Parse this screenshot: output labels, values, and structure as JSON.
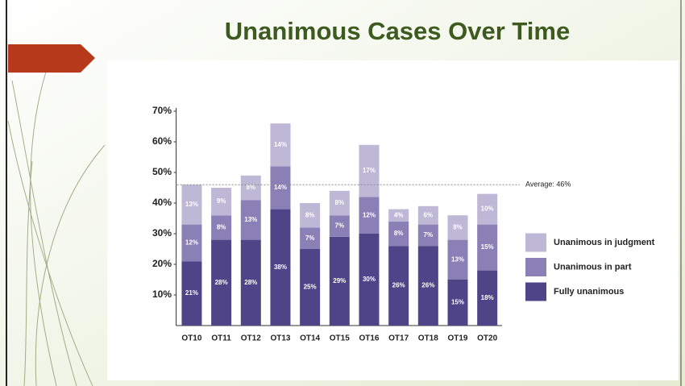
{
  "slide_title": "Unanimous Cases Over Time",
  "chart_data": {
    "type": "stacked_bar",
    "categories": [
      "OT10",
      "OT11",
      "OT12",
      "OT13",
      "OT14",
      "OT15",
      "OT16",
      "OT17",
      "OT18",
      "OT19",
      "OT20"
    ],
    "series": [
      {
        "name": "Fully unanimous",
        "color": "#4e4487",
        "values": [
          21,
          28,
          28,
          38,
          25,
          29,
          30,
          26,
          26,
          15,
          18
        ],
        "value_labels": [
          "21%",
          "28%",
          "28%",
          "38%",
          "25%",
          "29%",
          "30%",
          "26%",
          "26%",
          "15%",
          "18%"
        ]
      },
      {
        "name": "Unanimous in part",
        "color": "#8b80b6",
        "values": [
          12,
          8,
          13,
          14,
          7,
          7,
          12,
          8,
          7,
          13,
          15
        ],
        "value_labels": [
          "12%",
          "8%",
          "13%",
          "14%",
          "7%",
          "7%",
          "12%",
          "8%",
          "7%",
          "13%",
          "15%"
        ]
      },
      {
        "name": "Unanimous in judgment",
        "color": "#beb7d6",
        "values": [
          13,
          9,
          8,
          14,
          8,
          8,
          17,
          4,
          6,
          8,
          10
        ],
        "value_labels": [
          "13%",
          "9%",
          "8%",
          "14%",
          "8%",
          "8%",
          "17%",
          "4%",
          "6%",
          "8%",
          "10%"
        ]
      }
    ],
    "ylim": [
      0,
      70
    ],
    "yticks": [
      {
        "value": 10,
        "label": "10%"
      },
      {
        "value": 20,
        "label": "20%"
      },
      {
        "value": 30,
        "label": "30%"
      },
      {
        "value": 40,
        "label": "40%"
      },
      {
        "value": 50,
        "label": "50%"
      },
      {
        "value": 60,
        "label": "60%"
      },
      {
        "value": 70,
        "label": "70%"
      }
    ],
    "average": {
      "value": 46,
      "label": "Average: 46%"
    },
    "legend_position": "right"
  }
}
